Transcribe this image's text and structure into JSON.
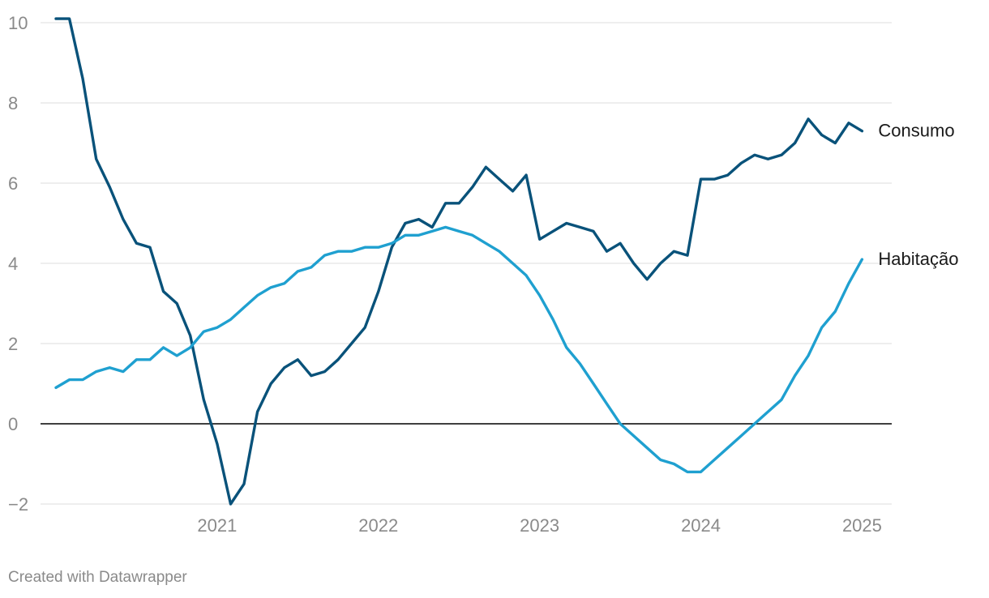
{
  "chart_data": {
    "type": "line",
    "title": "",
    "xlabel": "",
    "ylabel": "",
    "ylim": [
      -2,
      10
    ],
    "yticks": [
      -2,
      0,
      2,
      4,
      6,
      8,
      10
    ],
    "ytick_labels": [
      "−2",
      "0",
      "2",
      "4",
      "6",
      "8",
      "10"
    ],
    "x_start": "2020-01",
    "x_end": "2025-02",
    "xticks": [
      "2021",
      "2022",
      "2023",
      "2024",
      "2025"
    ],
    "grid": true,
    "zero_line": true,
    "series": [
      {
        "name": "Consumo",
        "color": "#09527a",
        "values": [
          10.1,
          10.1,
          8.6,
          6.6,
          5.9,
          5.1,
          4.5,
          4.4,
          3.3,
          3.0,
          2.2,
          0.6,
          -0.5,
          -2.0,
          -1.5,
          0.3,
          1.0,
          1.4,
          1.6,
          1.2,
          1.3,
          1.6,
          2.0,
          2.4,
          3.3,
          4.4,
          5.0,
          5.1,
          4.9,
          5.5,
          5.5,
          5.9,
          6.4,
          6.1,
          5.8,
          6.2,
          4.6,
          4.8,
          5.0,
          4.9,
          4.8,
          4.3,
          4.5,
          4.0,
          3.6,
          4.0,
          4.3,
          4.2,
          6.1,
          6.1,
          6.2,
          6.5,
          6.7,
          6.6,
          6.7,
          7.0,
          7.6,
          7.2,
          7.0,
          7.5,
          7.3
        ]
      },
      {
        "name": "Habitação",
        "color": "#1fa0d0",
        "values": [
          0.9,
          1.1,
          1.1,
          1.3,
          1.4,
          1.3,
          1.6,
          1.6,
          1.9,
          1.7,
          1.9,
          2.3,
          2.4,
          2.6,
          2.9,
          3.2,
          3.4,
          3.5,
          3.8,
          3.9,
          4.2,
          4.3,
          4.3,
          4.4,
          4.4,
          4.5,
          4.7,
          4.7,
          4.8,
          4.9,
          4.8,
          4.7,
          4.5,
          4.3,
          4.0,
          3.7,
          3.2,
          2.6,
          1.9,
          1.5,
          1.0,
          0.5,
          0.0,
          -0.3,
          -0.6,
          -0.9,
          -1.0,
          -1.2,
          -1.2,
          -0.9,
          -0.6,
          -0.3,
          0.0,
          0.3,
          0.6,
          1.2,
          1.7,
          2.4,
          2.8,
          3.5,
          4.1
        ]
      }
    ]
  },
  "credit": "Created with Datawrapper"
}
